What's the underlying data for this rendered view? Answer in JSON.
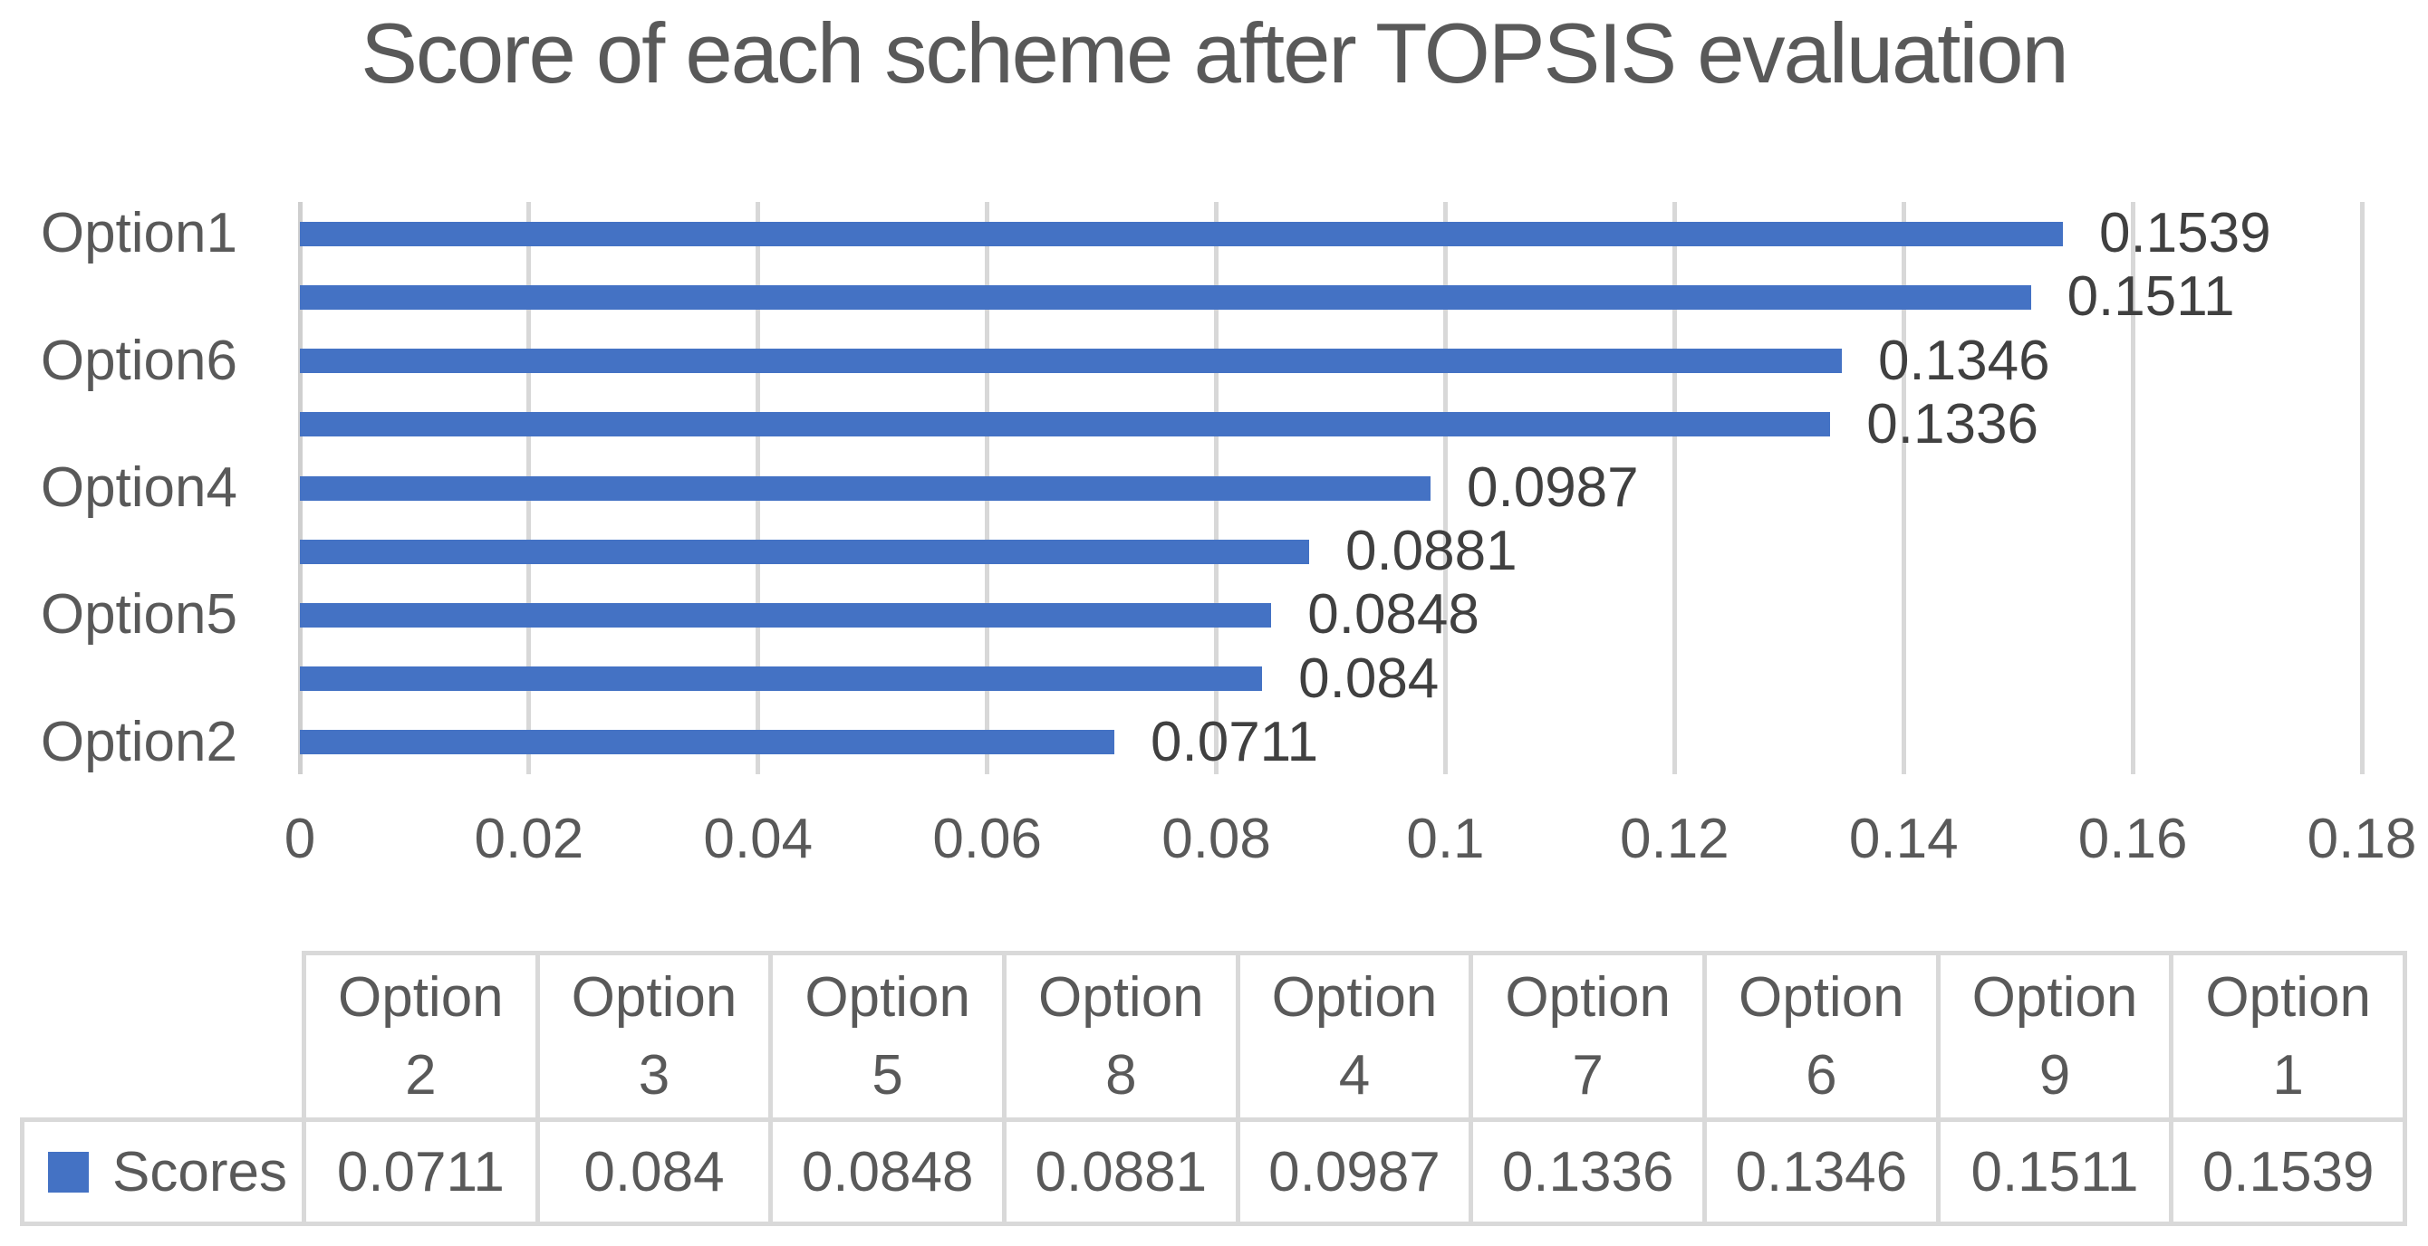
{
  "chart_data": {
    "type": "bar",
    "orientation": "horizontal",
    "title": "Score of each scheme after TOPSIS evaluation",
    "bar_color": "#4472C4",
    "grid": true,
    "xlim": [
      0,
      0.18
    ],
    "x_ticks": [
      "0",
      "0.02",
      "0.04",
      "0.06",
      "0.08",
      "0.1",
      "0.12",
      "0.14",
      "0.16",
      "0.18"
    ],
    "bars_top_to_bottom": [
      {
        "category": "Option1",
        "value": 0.1539,
        "label": "0.1539"
      },
      {
        "category": "Option9",
        "value": 0.1511,
        "label": "0.1511"
      },
      {
        "category": "Option6",
        "value": 0.1346,
        "label": "0.1346"
      },
      {
        "category": "Option7",
        "value": 0.1336,
        "label": "0.1336"
      },
      {
        "category": "Option4",
        "value": 0.0987,
        "label": "0.0987"
      },
      {
        "category": "Option8",
        "value": 0.0881,
        "label": "0.0881"
      },
      {
        "category": "Option5",
        "value": 0.0848,
        "label": "0.0848"
      },
      {
        "category": "Option3",
        "value": 0.084,
        "label": "0.084"
      },
      {
        "category": "Option2",
        "value": 0.0711,
        "label": "0.0711"
      }
    ],
    "y_axis_visible_labels": [
      {
        "row": 0,
        "text": "Option1"
      },
      {
        "row": 2,
        "text": "Option6"
      },
      {
        "row": 4,
        "text": "Option4"
      },
      {
        "row": 6,
        "text": "Option5"
      },
      {
        "row": 8,
        "text": "Option2"
      }
    ],
    "data_table": {
      "legend_label": "Scores",
      "columns": [
        "Option 2",
        "Option 3",
        "Option 5",
        "Option 8",
        "Option 4",
        "Option 7",
        "Option 6",
        "Option 9",
        "Option 1"
      ],
      "values": [
        "0.0711",
        "0.084",
        "0.0848",
        "0.0881",
        "0.0987",
        "0.1336",
        "0.1346",
        "0.1511",
        "0.1539"
      ]
    }
  },
  "colors": {
    "bar": "#4472C4",
    "gridline": "#D8D8D8",
    "table_border": "#D9D9D9",
    "axis_text": "#595959",
    "data_label_text": "#404040",
    "title_text": "#595959"
  }
}
